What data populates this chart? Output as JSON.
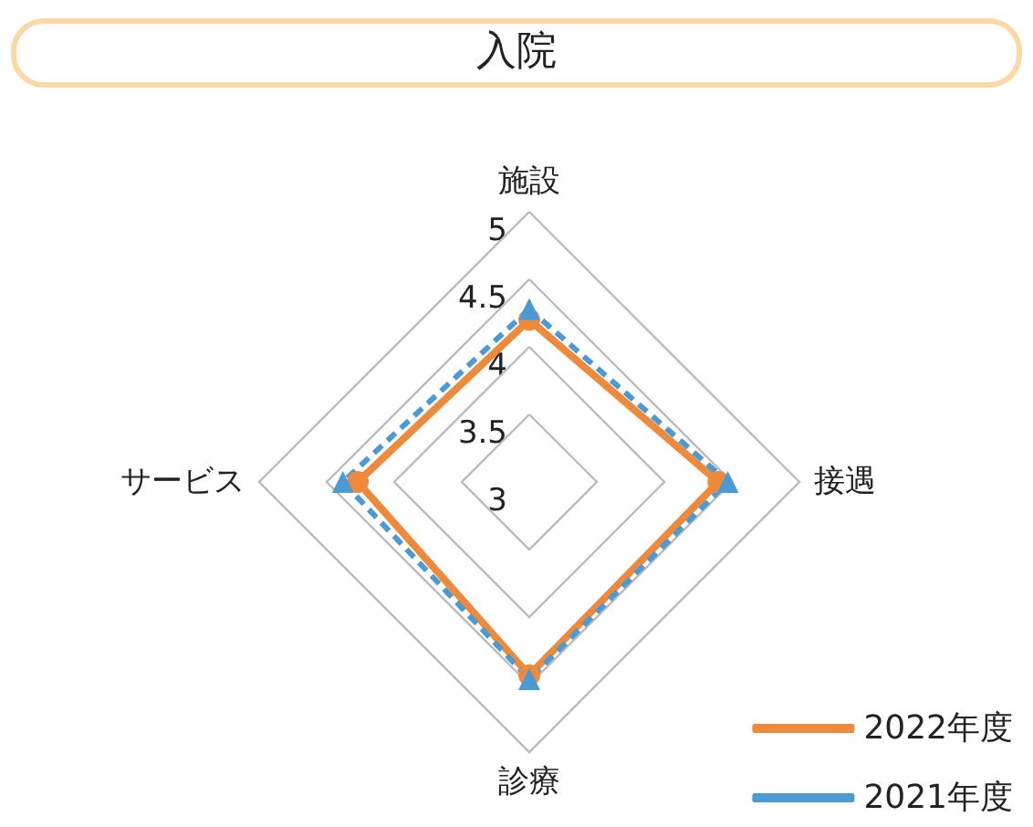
{
  "chart_data": {
    "type": "radar",
    "title": "入院",
    "categories": [
      "施設",
      "接遇",
      "診療",
      "サービス"
    ],
    "series": [
      {
        "name": "2022年度",
        "color": "#ee8a3c",
        "values": [
          4.2,
          4.4,
          4.43,
          4.27
        ],
        "marker": "circle",
        "line_style": "solid"
      },
      {
        "name": "2021年度",
        "color": "#4a9ad4",
        "values": [
          4.28,
          4.47,
          4.46,
          4.38
        ],
        "marker": "triangle",
        "line_style": "dashed"
      }
    ],
    "ylim": [
      3,
      5
    ],
    "yticks": [
      3,
      3.5,
      4,
      4.5,
      5
    ],
    "grid": true,
    "legend": "bottom right"
  }
}
